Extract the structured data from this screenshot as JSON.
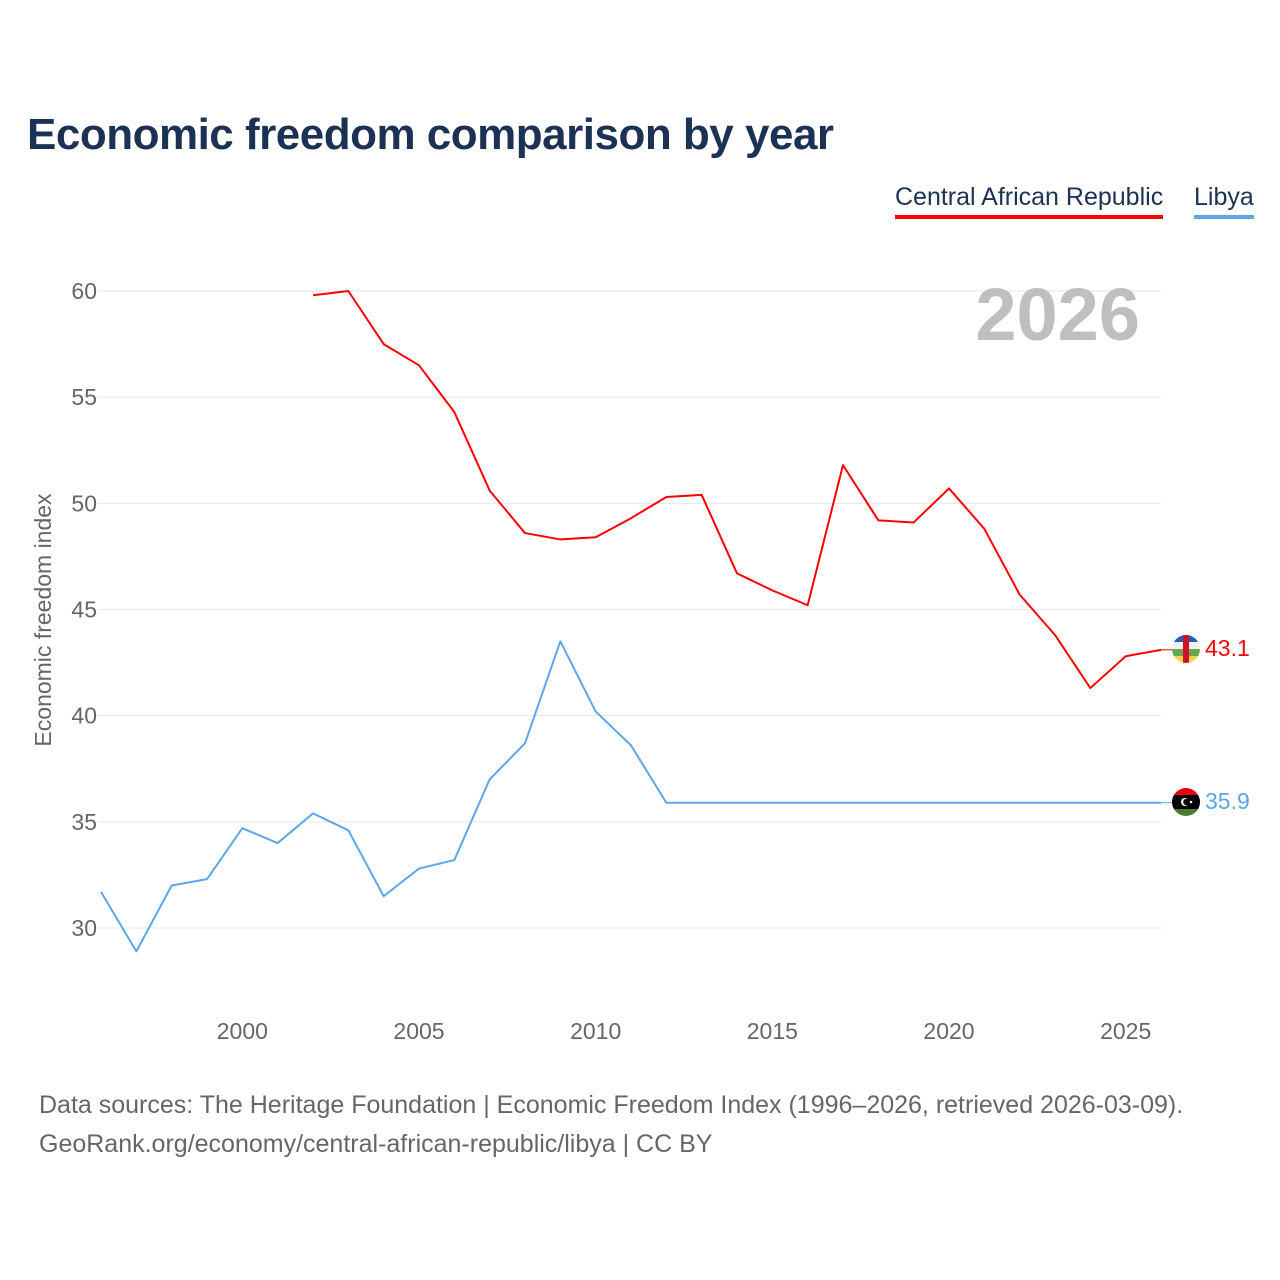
{
  "title": "Economic freedom comparison by year",
  "footer": {
    "line1": "Data sources: The Heritage Foundation | Economic Freedom Index (1996–2026, retrieved 2026-03-09).",
    "line2": "GeoRank.org/economy/central-african-republic/libya | CC BY"
  },
  "chart_data": {
    "type": "line",
    "title": "Economic freedom comparison by year",
    "xlabel": "",
    "ylabel": "Economic freedom index",
    "xlim": [
      1996,
      2026
    ],
    "ylim": [
      30,
      60
    ],
    "x_ticks": [
      2000,
      2005,
      2010,
      2015,
      2020,
      2025
    ],
    "y_ticks": [
      30,
      35,
      40,
      45,
      50,
      55,
      60
    ],
    "grid": true,
    "legend_position": "top-right",
    "year_label": "2026",
    "series": [
      {
        "name": "Central African Republic",
        "color": "#ff0000",
        "end_label": "43.1",
        "x": [
          2002,
          2003,
          2004,
          2005,
          2006,
          2007,
          2008,
          2009,
          2010,
          2011,
          2012,
          2013,
          2014,
          2015,
          2016,
          2017,
          2018,
          2019,
          2020,
          2021,
          2022,
          2023,
          2024,
          2025,
          2026
        ],
        "values": [
          59.8,
          60.0,
          57.5,
          56.5,
          54.3,
          50.6,
          48.6,
          48.3,
          48.4,
          49.3,
          50.3,
          50.4,
          46.7,
          45.9,
          45.2,
          51.8,
          49.2,
          49.1,
          50.7,
          48.8,
          45.7,
          43.8,
          41.3,
          42.8,
          43.1
        ]
      },
      {
        "name": "Libya",
        "color": "#5ca7ea",
        "end_label": "35.9",
        "x": [
          1996,
          1997,
          1998,
          1999,
          2000,
          2001,
          2002,
          2003,
          2004,
          2005,
          2006,
          2007,
          2008,
          2009,
          2010,
          2011,
          2012,
          2013,
          2014,
          2015,
          2016,
          2017,
          2018,
          2019,
          2020,
          2021,
          2022,
          2023,
          2024,
          2025,
          2026
        ],
        "values": [
          31.7,
          28.9,
          32.0,
          32.3,
          34.7,
          34.0,
          35.4,
          34.6,
          31.5,
          32.8,
          33.2,
          37.0,
          38.7,
          43.5,
          40.2,
          38.6,
          35.9,
          35.9,
          35.9,
          35.9,
          35.9,
          35.9,
          35.9,
          35.9,
          35.9,
          35.9,
          35.9,
          35.9,
          35.9,
          35.9,
          35.9
        ]
      }
    ]
  }
}
